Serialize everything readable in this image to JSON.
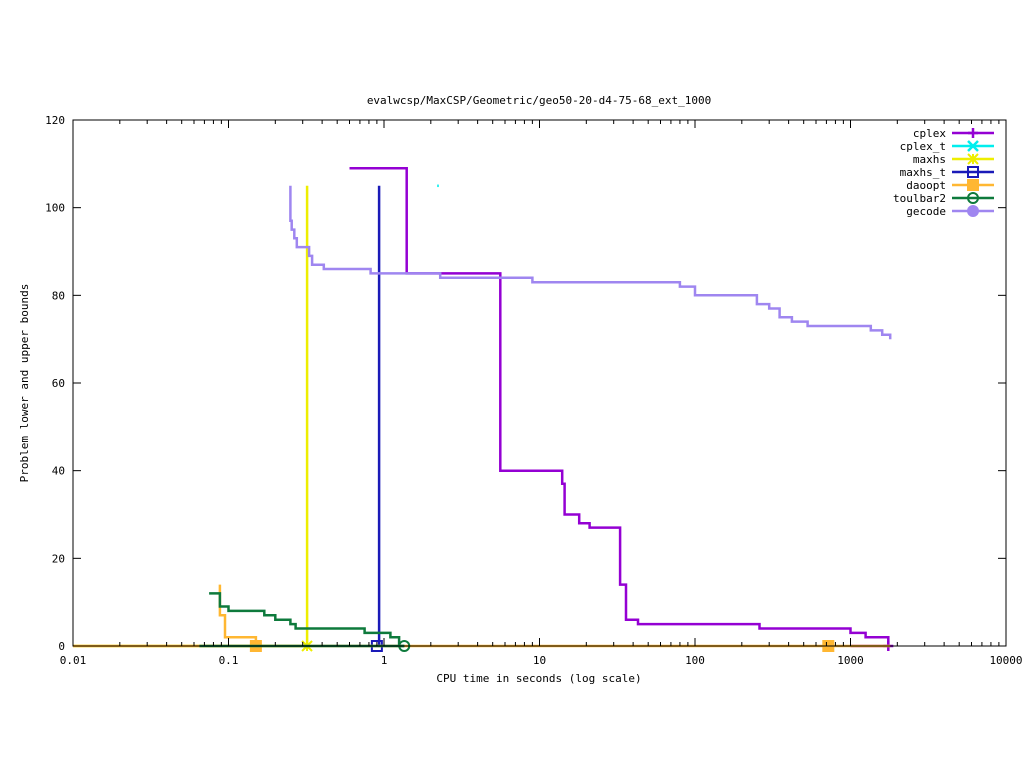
{
  "chart_data": {
    "type": "line",
    "title": "evalwcsp/MaxCSP/Geometric/geo50-20-d4-75-68_ext_1000",
    "xlabel": "CPU time in seconds (log scale)",
    "ylabel": "Problem lower and upper bounds",
    "xscale": "log",
    "xlim": [
      0.01,
      10000
    ],
    "ylim": [
      0,
      120
    ],
    "xticks": [
      {
        "value": 0.01,
        "label": "0.01"
      },
      {
        "value": 0.1,
        "label": "0.1"
      },
      {
        "value": 1,
        "label": "1"
      },
      {
        "value": 10,
        "label": "10"
      },
      {
        "value": 100,
        "label": "100"
      },
      {
        "value": 1000,
        "label": "1000"
      },
      {
        "value": 10000,
        "label": "10000"
      }
    ],
    "yticks": [
      {
        "value": 0,
        "label": "0"
      },
      {
        "value": 20,
        "label": "20"
      },
      {
        "value": 40,
        "label": "40"
      },
      {
        "value": 60,
        "label": "60"
      },
      {
        "value": 80,
        "label": "80"
      },
      {
        "value": 100,
        "label": "100"
      },
      {
        "value": 120,
        "label": "120"
      }
    ],
    "grid": false,
    "legend_position": "top-right",
    "series": [
      {
        "name": "cplex",
        "color": "#9400d3",
        "marker": "plus",
        "upper": [
          [
            0.6,
            109
          ],
          [
            1.4,
            109
          ],
          [
            1.4,
            85
          ],
          [
            5.6,
            85
          ],
          [
            5.6,
            40
          ],
          [
            14,
            40
          ],
          [
            14,
            37
          ],
          [
            14.5,
            37
          ],
          [
            14.5,
            30
          ],
          [
            18,
            30
          ],
          [
            18,
            28
          ],
          [
            21,
            28
          ],
          [
            21,
            27
          ],
          [
            33,
            27
          ],
          [
            33,
            14
          ],
          [
            36,
            14
          ],
          [
            36,
            6
          ],
          [
            43,
            6
          ],
          [
            43,
            5
          ],
          [
            260,
            5
          ],
          [
            260,
            4
          ],
          [
            1000,
            4
          ],
          [
            1000,
            3
          ],
          [
            1250,
            3
          ],
          [
            1250,
            2
          ],
          [
            1750,
            2
          ],
          [
            1750,
            0
          ]
        ],
        "lower": [
          [
            1000,
            0
          ],
          [
            1800,
            0
          ]
        ],
        "markers": [
          [
            1750,
            0
          ]
        ]
      },
      {
        "name": "cplex_t",
        "color": "#00eeee",
        "marker": "cross",
        "upper": [
          [
            2.2,
            105
          ],
          [
            2.25,
            105
          ]
        ],
        "lower": [],
        "markers": []
      },
      {
        "name": "maxhs",
        "color": "#eeee00",
        "marker": "star",
        "upper": [
          [
            0.32,
            105
          ],
          [
            0.32,
            0
          ]
        ],
        "lower": [
          [
            0.01,
            0
          ],
          [
            0.32,
            0
          ]
        ],
        "markers": [
          [
            0.32,
            0
          ]
        ]
      },
      {
        "name": "maxhs_t",
        "color": "#1a1ab8",
        "marker": "box",
        "upper": [
          [
            0.93,
            105
          ],
          [
            0.93,
            0
          ]
        ],
        "lower": [],
        "markers": [
          [
            0.9,
            0
          ]
        ]
      },
      {
        "name": "daoopt",
        "color": "#ffb732",
        "marker": "filled-box",
        "upper": [
          [
            0.088,
            14
          ],
          [
            0.088,
            7
          ],
          [
            0.095,
            7
          ],
          [
            0.095,
            2
          ],
          [
            0.15,
            2
          ],
          [
            0.15,
            0
          ]
        ],
        "lower": [
          [
            0.01,
            0
          ],
          [
            1800,
            0
          ]
        ],
        "markers": [
          [
            0.15,
            0
          ],
          [
            720,
            0
          ]
        ]
      },
      {
        "name": "toulbar2",
        "color": "#0e7a3c",
        "marker": "circle",
        "upper": [
          [
            0.075,
            12
          ],
          [
            0.088,
            12
          ],
          [
            0.088,
            9
          ],
          [
            0.1,
            9
          ],
          [
            0.1,
            8
          ],
          [
            0.17,
            8
          ],
          [
            0.17,
            7
          ],
          [
            0.2,
            7
          ],
          [
            0.2,
            6
          ],
          [
            0.25,
            6
          ],
          [
            0.25,
            5
          ],
          [
            0.27,
            5
          ],
          [
            0.27,
            4
          ],
          [
            0.75,
            4
          ],
          [
            0.75,
            3
          ],
          [
            1.1,
            3
          ],
          [
            1.1,
            2
          ],
          [
            1.25,
            2
          ],
          [
            1.25,
            0
          ],
          [
            1.35,
            0
          ]
        ],
        "lower": [
          [
            0.065,
            0
          ],
          [
            1.35,
            0
          ]
        ],
        "markers": [
          [
            1.35,
            0
          ]
        ]
      },
      {
        "name": "gecode",
        "color": "#9f86f0",
        "marker": "filled-circle",
        "upper": [
          [
            0.25,
            105
          ],
          [
            0.25,
            97
          ],
          [
            0.255,
            97
          ],
          [
            0.255,
            95
          ],
          [
            0.265,
            95
          ],
          [
            0.265,
            93
          ],
          [
            0.275,
            93
          ],
          [
            0.275,
            91
          ],
          [
            0.33,
            91
          ],
          [
            0.33,
            89
          ],
          [
            0.345,
            89
          ],
          [
            0.345,
            87
          ],
          [
            0.41,
            87
          ],
          [
            0.41,
            86
          ],
          [
            0.82,
            86
          ],
          [
            0.82,
            85
          ],
          [
            2.3,
            85
          ],
          [
            2.3,
            84
          ],
          [
            9,
            84
          ],
          [
            9,
            83
          ],
          [
            80,
            83
          ],
          [
            80,
            82
          ],
          [
            100,
            82
          ],
          [
            100,
            80
          ],
          [
            250,
            80
          ],
          [
            250,
            78
          ],
          [
            300,
            78
          ],
          [
            300,
            77
          ],
          [
            350,
            77
          ],
          [
            350,
            75
          ],
          [
            420,
            75
          ],
          [
            420,
            74
          ],
          [
            530,
            74
          ],
          [
            530,
            73
          ],
          [
            1350,
            73
          ],
          [
            1350,
            72
          ],
          [
            1600,
            72
          ],
          [
            1600,
            71
          ],
          [
            1800,
            71
          ],
          [
            1800,
            70
          ]
        ],
        "lower": [],
        "markers": []
      }
    ]
  }
}
